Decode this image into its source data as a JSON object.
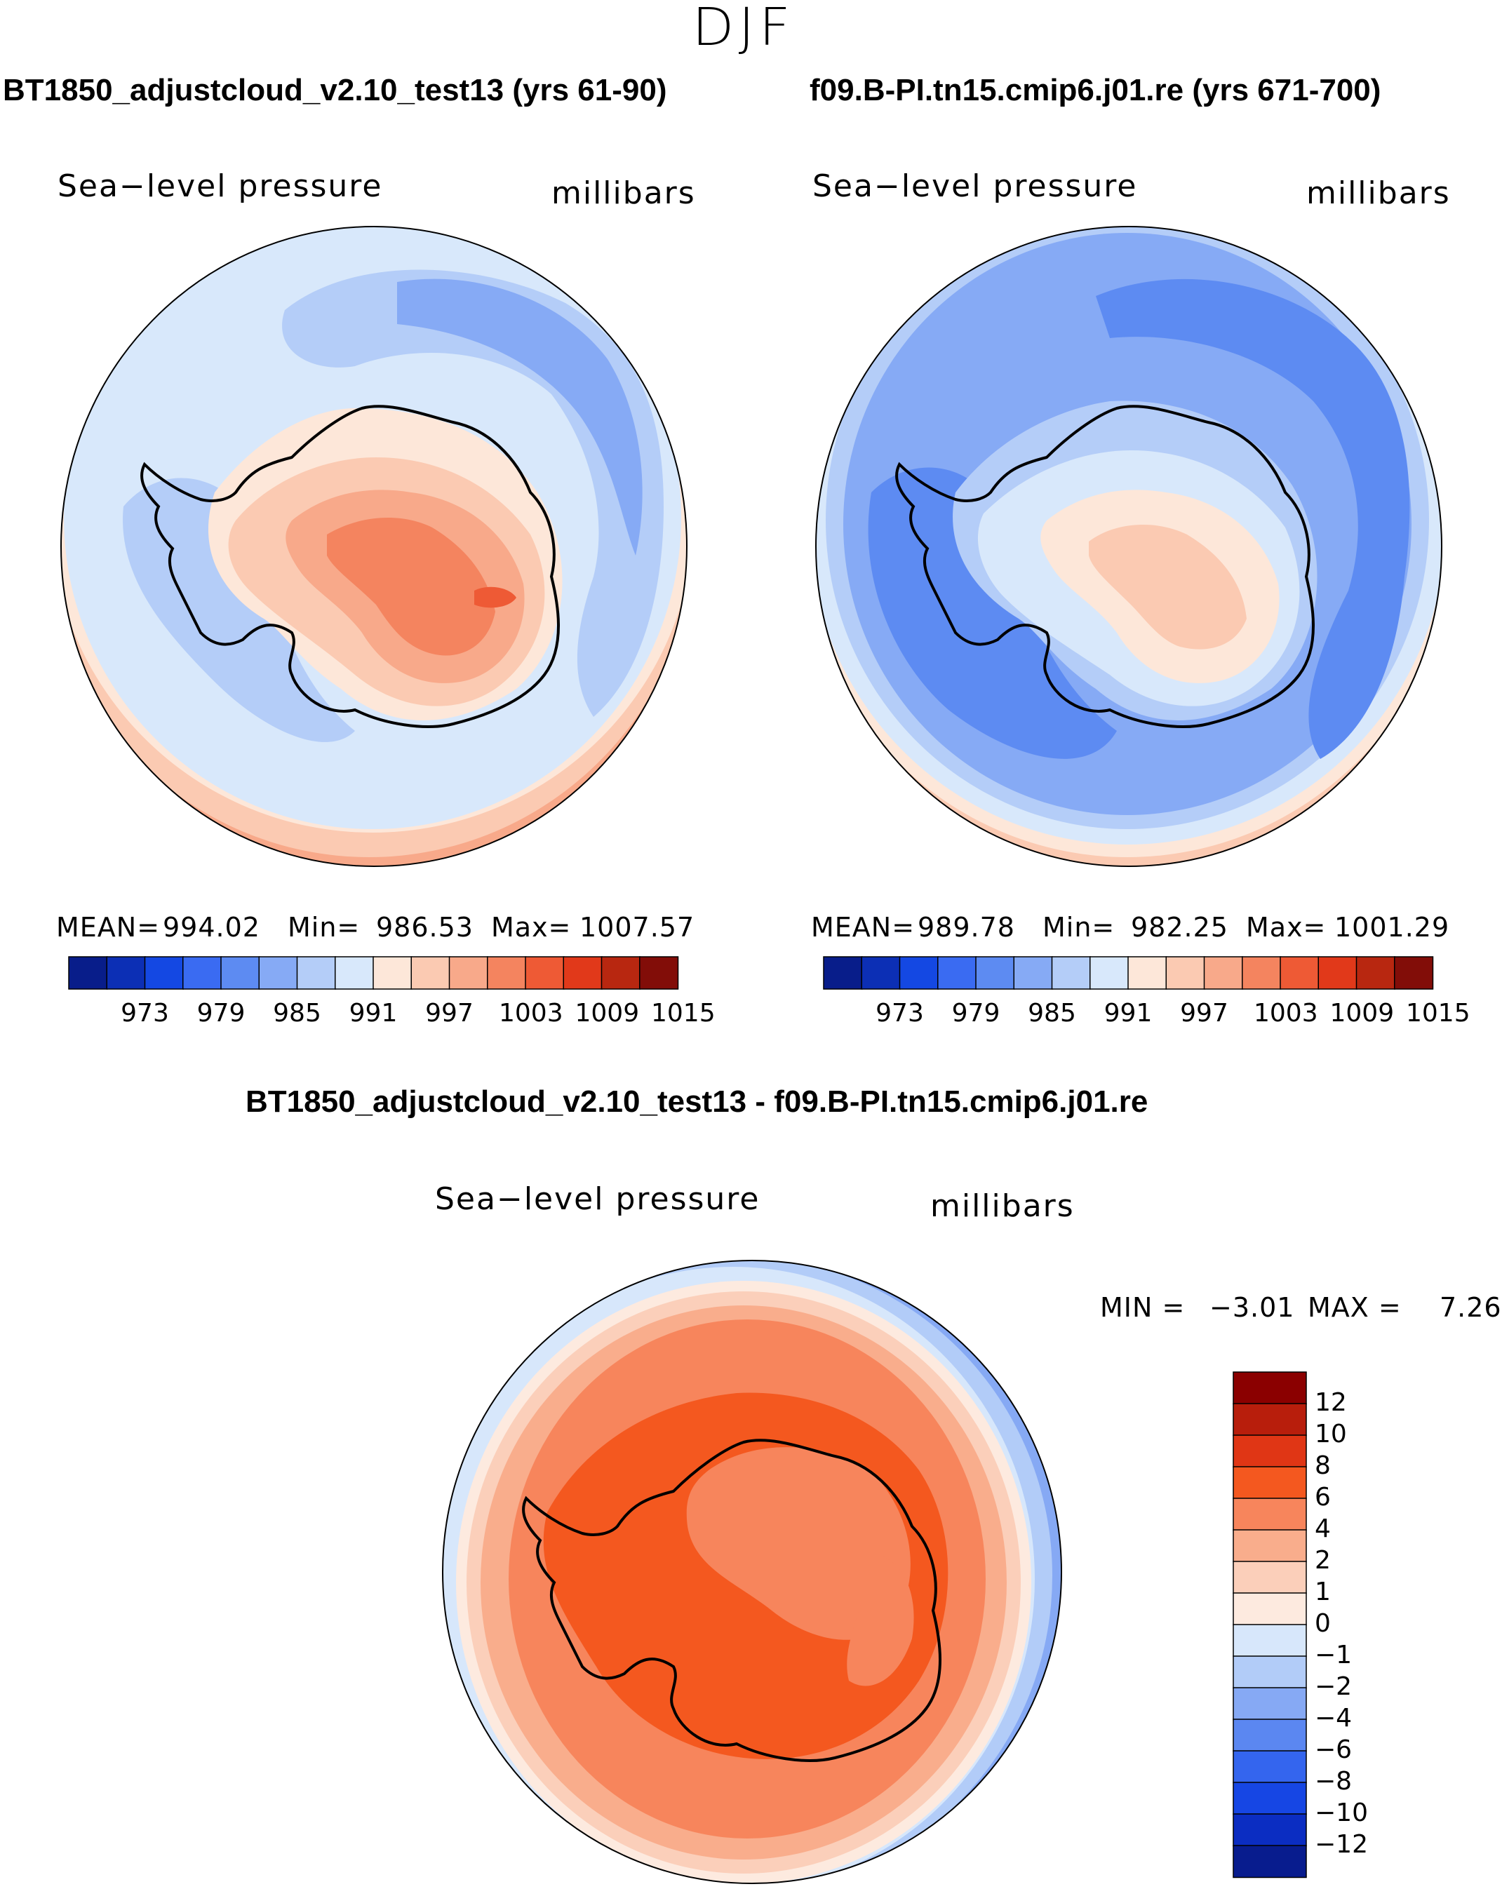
{
  "page_title": "DJF",
  "chart_data": [
    {
      "type": "heatmap",
      "title": "BT1850_adjustcloud_v2.10_test13 (yrs 61-90)",
      "variable": "Sea−level pressure",
      "units": "millibars",
      "stats": {
        "mean_label": "MEAN=",
        "mean": "994.02",
        "min_label": "Min=",
        "min": "986.53",
        "max_label": "Max=",
        "max": "1007.57"
      },
      "colorbar_ticks": [
        "973",
        "979",
        "985",
        "991",
        "997",
        "1003",
        "1009",
        "1015"
      ]
    },
    {
      "type": "heatmap",
      "title": "f09.B-PI.tn15.cmip6.j01.re (yrs 671-700)",
      "variable": "Sea−level pressure",
      "units": "millibars",
      "stats": {
        "mean_label": "MEAN=",
        "mean": "989.78",
        "min_label": "Min=",
        "min": "982.25",
        "max_label": "Max=",
        "max": "1001.29"
      },
      "colorbar_ticks": [
        "973",
        "979",
        "985",
        "991",
        "997",
        "1003",
        "1009",
        "1015"
      ]
    },
    {
      "type": "heatmap",
      "title": "BT1850_adjustcloud_v2.10_test13 - f09.B-PI.tn15.cmip6.j01.re",
      "variable": "Sea−level pressure",
      "units": "millibars",
      "stats": {
        "min_label": "MIN =",
        "min": "−3.01",
        "max_label": "MAX =",
        "max": "7.26"
      },
      "colorbar_ticks": [
        "12",
        "10",
        "8",
        "6",
        "4",
        "2",
        "1",
        "0",
        "−1",
        "−2",
        "−4",
        "−6",
        "−8",
        "−10",
        "−12"
      ]
    }
  ],
  "colors": {
    "abs_scale": [
      "#081d8a",
      "#0c2fb5",
      "#1448e3",
      "#3a6bf2",
      "#5d8bf2",
      "#86aaf5",
      "#b4cdf8",
      "#d8e8fb",
      "#fde7d9",
      "#fbcab2",
      "#f8a98a",
      "#f4845f",
      "#ee5a35",
      "#e1391a",
      "#b82710",
      "#820d08"
    ],
    "diff_scale": [
      "#8b0000",
      "#b81e0c",
      "#e03615",
      "#f4581f",
      "#f7855c",
      "#f9ad8c",
      "#fbcfba",
      "#fdeadf",
      "#d7e7fb",
      "#b2ccf8",
      "#86a9f4",
      "#5b87f1",
      "#3465ee",
      "#1646e4",
      "#0b2dc2",
      "#081c8e"
    ]
  }
}
